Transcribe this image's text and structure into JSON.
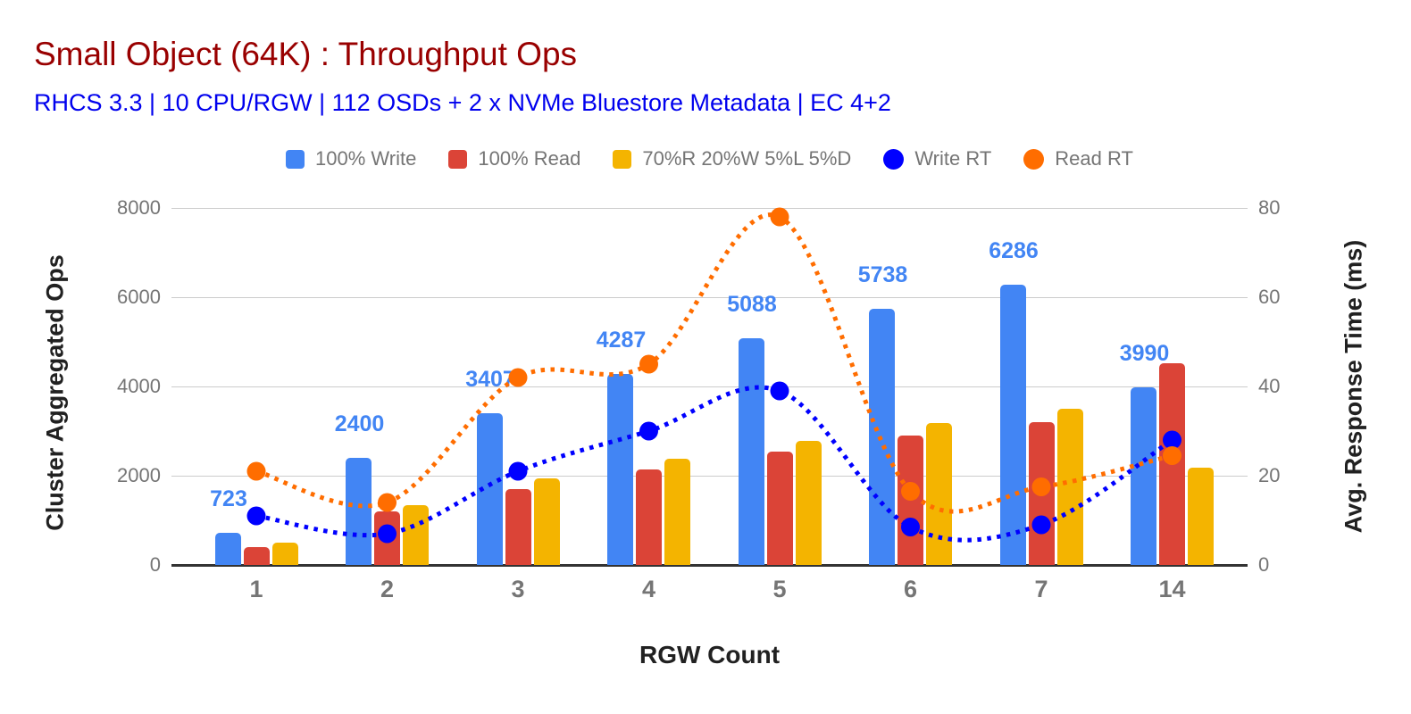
{
  "title": {
    "text": "Small Object (64K) : Throughput Ops",
    "color": "#990000"
  },
  "subtitle": {
    "text": "RHCS 3.3 | 10 CPU/RGW | 112 OSDs + 2 x NVMe Bluestore Metadata | EC 4+2",
    "color": "#0000ee"
  },
  "legend": {
    "position": "top",
    "items": [
      {
        "label": "100% Write",
        "color": "#4285f4",
        "shape": "square"
      },
      {
        "label": "100% Read",
        "color": "#db4437",
        "shape": "square"
      },
      {
        "label": "70%R 20%W 5%L 5%D",
        "color": "#f4b400",
        "shape": "square"
      },
      {
        "label": "Write RT",
        "color": "#0000ff",
        "shape": "circle"
      },
      {
        "label": "Read RT",
        "color": "#ff6d00",
        "shape": "circle"
      }
    ]
  },
  "chart_data": {
    "type": "combo: grouped bar + smoothed dotted line",
    "categories": [
      "1",
      "2",
      "3",
      "4",
      "5",
      "6",
      "7",
      "14"
    ],
    "bar_series": [
      {
        "name": "100% Write",
        "color": "#4285f4",
        "axis": "left",
        "data_labels_shown": true,
        "values": [
          723,
          2400,
          3407,
          4287,
          5088,
          5738,
          6286,
          3990
        ]
      },
      {
        "name": "100% Read",
        "color": "#db4437",
        "axis": "left",
        "data_labels_shown": false,
        "values": [
          400,
          1200,
          1700,
          2140,
          2540,
          2900,
          3200,
          4520
        ]
      },
      {
        "name": "70%R 20%W 5%L 5%D",
        "color": "#f4b400",
        "axis": "left",
        "data_labels_shown": false,
        "values": [
          500,
          1340,
          1940,
          2380,
          2780,
          3180,
          3500,
          2180
        ]
      }
    ],
    "line_series": [
      {
        "name": "Write RT",
        "color": "#0000ff",
        "axis": "right",
        "style": "dotted",
        "values": [
          11,
          7,
          21,
          30,
          39,
          8.5,
          9,
          28
        ]
      },
      {
        "name": "Read RT",
        "color": "#ff6d00",
        "axis": "right",
        "style": "dotted",
        "values": [
          21,
          14,
          42,
          45,
          78,
          16.5,
          17.5,
          24.5
        ]
      }
    ],
    "left_axis": {
      "title": "Cluster Aggregated Ops",
      "min": 0,
      "max": 8000,
      "ticks": [
        0,
        2000,
        4000,
        6000,
        8000
      ]
    },
    "right_axis": {
      "title": "Avg. Response Time (ms)",
      "min": 0,
      "max": 80,
      "ticks": [
        0,
        20,
        40,
        60,
        80
      ]
    },
    "x_axis": {
      "title": "RGW Count"
    },
    "grid": true,
    "legend_position": "top"
  }
}
